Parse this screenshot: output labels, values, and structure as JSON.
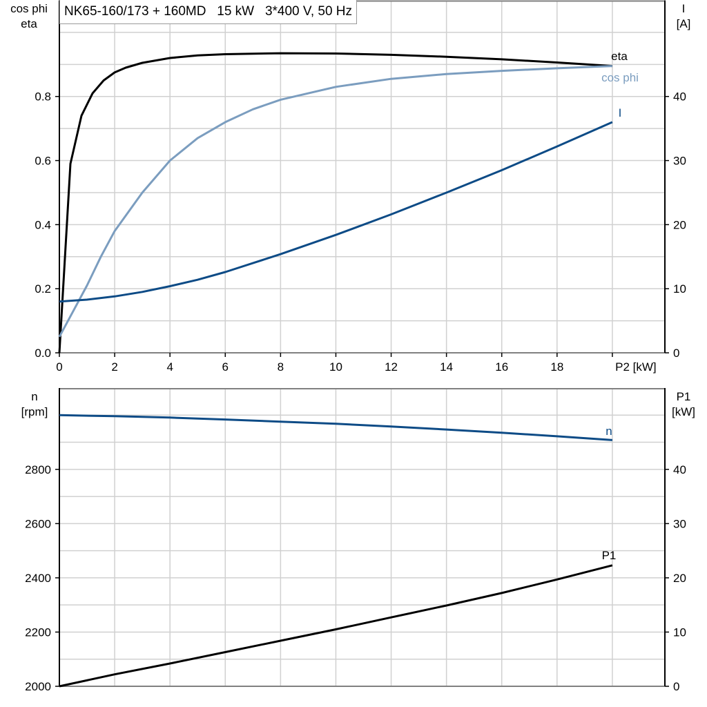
{
  "title": "NK65-160/173 + 160MD   15 kW   3*400 V, 50 Hz",
  "colors": {
    "eta": "#000000",
    "cos_phi": "#7b9dbf",
    "I": "#0d4b86",
    "n": "#0d4b86",
    "P1": "#000000",
    "grid": "#d0d0d0",
    "frame": "#808080"
  },
  "chart_data": [
    {
      "type": "line",
      "xlabel": "P2 [kW]",
      "xlim": [
        0,
        21.9
      ],
      "xticks": [
        0,
        2,
        4,
        6,
        8,
        10,
        12,
        14,
        16,
        18
      ],
      "ylabel_left": [
        "cos phi",
        "eta"
      ],
      "ylim_left": [
        0,
        1.1
      ],
      "yticks_left": [
        "0.0",
        "0.2",
        "0.4",
        "0.6",
        "0.8"
      ],
      "ylabel_right": [
        "I",
        "[A]"
      ],
      "ylim_right": [
        0,
        55
      ],
      "yticks_right": [
        "0",
        "10",
        "20",
        "30",
        "40"
      ],
      "grid": true,
      "series": [
        {
          "name": "eta",
          "axis": "left",
          "color": "#000000",
          "x": [
            0,
            0.4,
            0.8,
            1.2,
            1.6,
            2.0,
            2.4,
            3,
            4,
            5,
            6,
            8,
            10,
            12,
            14,
            16,
            18,
            20
          ],
          "y": [
            0.0,
            0.59,
            0.74,
            0.81,
            0.85,
            0.875,
            0.89,
            0.905,
            0.92,
            0.928,
            0.932,
            0.935,
            0.934,
            0.93,
            0.924,
            0.916,
            0.906,
            0.895
          ]
        },
        {
          "name": "cos phi",
          "axis": "left",
          "color": "#7b9dbf",
          "x": [
            0,
            0.5,
            1,
            1.5,
            2,
            3,
            4,
            5,
            6,
            7,
            8,
            10,
            12,
            14,
            16,
            18,
            20
          ],
          "y": [
            0.05,
            0.13,
            0.21,
            0.3,
            0.38,
            0.5,
            0.6,
            0.67,
            0.72,
            0.76,
            0.79,
            0.83,
            0.855,
            0.87,
            0.88,
            0.888,
            0.895
          ]
        },
        {
          "name": "I",
          "axis": "right",
          "color": "#0d4b86",
          "x": [
            0,
            1,
            2,
            3,
            4,
            5,
            6,
            8,
            10,
            12,
            14,
            16,
            18,
            20
          ],
          "y": [
            8.0,
            8.3,
            8.8,
            9.5,
            10.4,
            11.4,
            12.6,
            15.4,
            18.4,
            21.6,
            25.0,
            28.5,
            32.2,
            36.0
          ]
        }
      ]
    },
    {
      "type": "line",
      "xlim": [
        0,
        21.9
      ],
      "ylabel_left": [
        "n",
        "[rpm]"
      ],
      "ylim_left": [
        2000,
        3100
      ],
      "yticks_left": [
        "2000",
        "2200",
        "2400",
        "2600",
        "2800"
      ],
      "ylabel_right": [
        "P1",
        "[kW]"
      ],
      "ylim_right": [
        0,
        55
      ],
      "yticks_right": [
        "0",
        "10",
        "20",
        "30",
        "40"
      ],
      "grid": true,
      "series": [
        {
          "name": "n",
          "axis": "left",
          "color": "#0d4b86",
          "x": [
            0,
            2,
            4,
            6,
            8,
            10,
            12,
            14,
            16,
            18,
            20
          ],
          "y": [
            3000,
            2996,
            2991,
            2984,
            2976,
            2968,
            2958,
            2947,
            2935,
            2922,
            2908
          ]
        },
        {
          "name": "P1",
          "axis": "right",
          "color": "#000000",
          "x": [
            0,
            2,
            4,
            6,
            8,
            10,
            12,
            14,
            16,
            18,
            20
          ],
          "y": [
            0,
            2.2,
            4.2,
            6.3,
            8.4,
            10.5,
            12.7,
            14.9,
            17.2,
            19.7,
            22.3
          ]
        }
      ]
    }
  ]
}
